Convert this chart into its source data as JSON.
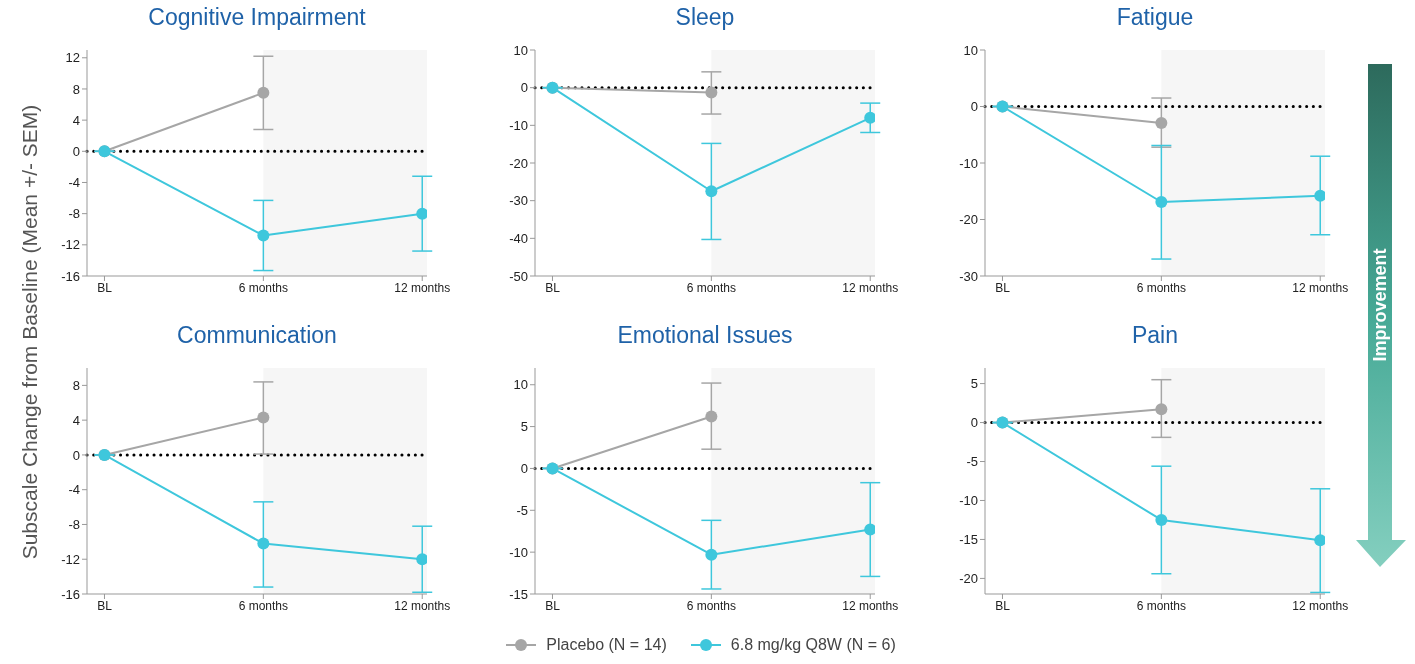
{
  "chart_data": [
    {
      "type": "line",
      "title": "Cognitive Impairment",
      "ylabel": "Subscale Change from Baseline (Mean +/- SEM)",
      "categories": [
        "BL",
        "6 months",
        "12 months"
      ],
      "ylim": [
        -16,
        13
      ],
      "yticks": [
        -16,
        -12,
        -8,
        -4,
        0,
        4,
        8,
        12
      ],
      "marker": "circle",
      "series": [
        {
          "color": "#a6a6a6",
          "values": [
            0,
            7.5,
            null
          ],
          "errors": [
            null,
            [
              2.8,
              12.2
            ],
            null
          ]
        },
        {
          "color": "#3ec7dc",
          "values": [
            0,
            -10.8,
            -8
          ],
          "errors": [
            null,
            [
              -15.3,
              -6.3
            ],
            [
              -12.8,
              -3.2
            ]
          ]
        }
      ],
      "ref_lines": [
        {
          "axis": "y",
          "value": 0,
          "color": "#000000",
          "line_style": "dotted"
        }
      ],
      "bands": [
        {
          "axis": "x",
          "from": "6 months",
          "to": "12 months",
          "color": "#f6f6f6"
        }
      ]
    },
    {
      "type": "line",
      "title": "Sleep",
      "categories": [
        "BL",
        "6 months",
        "12 months"
      ],
      "ylim": [
        -50,
        10
      ],
      "yticks": [
        -50,
        -40,
        -30,
        -20,
        -10,
        0,
        10
      ],
      "marker": "circle",
      "series": [
        {
          "color": "#a6a6a6",
          "values": [
            0,
            -1.3,
            null
          ],
          "errors": [
            null,
            [
              -7,
              4.2
            ],
            null
          ]
        },
        {
          "color": "#3ec7dc",
          "values": [
            0,
            -27.5,
            -8
          ],
          "errors": [
            null,
            [
              -40.3,
              -14.8
            ],
            [
              -11.9,
              -4.1
            ]
          ]
        }
      ],
      "ref_lines": [
        {
          "axis": "y",
          "value": 0,
          "color": "#000000",
          "line_style": "dotted"
        }
      ],
      "bands": [
        {
          "axis": "x",
          "from": "6 months",
          "to": "12 months",
          "color": "#f6f6f6"
        }
      ]
    },
    {
      "type": "line",
      "title": "Fatigue",
      "categories": [
        "BL",
        "6 months",
        "12 months"
      ],
      "ylim": [
        -30,
        10
      ],
      "yticks": [
        -30,
        -20,
        -10,
        0,
        10
      ],
      "marker": "circle",
      "series": [
        {
          "color": "#a6a6a6",
          "values": [
            0,
            -2.9,
            null
          ],
          "errors": [
            null,
            [
              -7.2,
              1.5
            ],
            null
          ]
        },
        {
          "color": "#3ec7dc",
          "values": [
            0,
            -16.9,
            -15.8
          ],
          "errors": [
            null,
            [
              -27,
              -6.9
            ],
            [
              -22.7,
              -8.8
            ]
          ]
        }
      ],
      "ref_lines": [
        {
          "axis": "y",
          "value": 0,
          "color": "#000000",
          "line_style": "dotted"
        }
      ],
      "bands": [
        {
          "axis": "x",
          "from": "6 months",
          "to": "12 months",
          "color": "#f6f6f6"
        }
      ],
      "annotations": [
        "Improvement"
      ]
    },
    {
      "type": "line",
      "title": "Communication",
      "categories": [
        "BL",
        "6 months",
        "12 months"
      ],
      "ylim": [
        -16,
        10
      ],
      "yticks": [
        -16,
        -12,
        -8,
        -4,
        0,
        4,
        8
      ],
      "marker": "circle",
      "series": [
        {
          "color": "#a6a6a6",
          "values": [
            0,
            4.3,
            null
          ],
          "errors": [
            null,
            [
              0.1,
              8.4
            ],
            null
          ]
        },
        {
          "color": "#3ec7dc",
          "values": [
            0,
            -10.2,
            -12
          ],
          "errors": [
            null,
            [
              -15.2,
              -5.4
            ],
            [
              -15.8,
              -8.2
            ]
          ]
        }
      ],
      "ref_lines": [
        {
          "axis": "y",
          "value": 0,
          "color": "#000000",
          "line_style": "dotted"
        }
      ],
      "bands": [
        {
          "axis": "x",
          "from": "6 months",
          "to": "12 months",
          "color": "#f6f6f6"
        }
      ]
    },
    {
      "type": "line",
      "title": "Emotional Issues",
      "categories": [
        "BL",
        "6 months",
        "12 months"
      ],
      "ylim": [
        -15,
        12
      ],
      "yticks": [
        -15,
        -10,
        -5,
        0,
        5,
        10
      ],
      "marker": "circle",
      "legend": "bottom",
      "series": [
        {
          "name": "Placebo (N = 14)",
          "color": "#a6a6a6",
          "values": [
            0,
            6.2,
            null
          ],
          "errors": [
            null,
            [
              2.3,
              10.2
            ],
            null
          ]
        },
        {
          "name": "6.8 mg/kg Q8W (N = 6)",
          "color": "#3ec7dc",
          "values": [
            0,
            -10.3,
            -7.3
          ],
          "errors": [
            null,
            [
              -14.4,
              -6.2
            ],
            [
              -12.9,
              -1.7
            ]
          ]
        }
      ],
      "ref_lines": [
        {
          "axis": "y",
          "value": 0,
          "color": "#000000",
          "line_style": "dotted"
        }
      ],
      "bands": [
        {
          "axis": "x",
          "from": "6 months",
          "to": "12 months",
          "color": "#f6f6f6"
        }
      ]
    },
    {
      "type": "line",
      "title": "Pain",
      "categories": [
        "BL",
        "6 months",
        "12 months"
      ],
      "ylim": [
        -22,
        7
      ],
      "yticks": [
        -20,
        -15,
        -10,
        -5,
        0,
        5
      ],
      "marker": "circle",
      "series": [
        {
          "color": "#a6a6a6",
          "values": [
            0,
            1.7,
            null
          ],
          "errors": [
            null,
            [
              -1.9,
              5.5
            ],
            null
          ]
        },
        {
          "color": "#3ec7dc",
          "values": [
            0,
            -12.5,
            -15.1
          ],
          "errors": [
            null,
            [
              -19.4,
              -5.6
            ],
            [
              -21.8,
              -8.5
            ]
          ]
        }
      ],
      "ref_lines": [
        {
          "axis": "y",
          "value": 0,
          "color": "#000000",
          "line_style": "dotted"
        }
      ],
      "bands": [
        {
          "axis": "x",
          "from": "6 months",
          "to": "12 months",
          "color": "#f6f6f6"
        }
      ]
    }
  ]
}
